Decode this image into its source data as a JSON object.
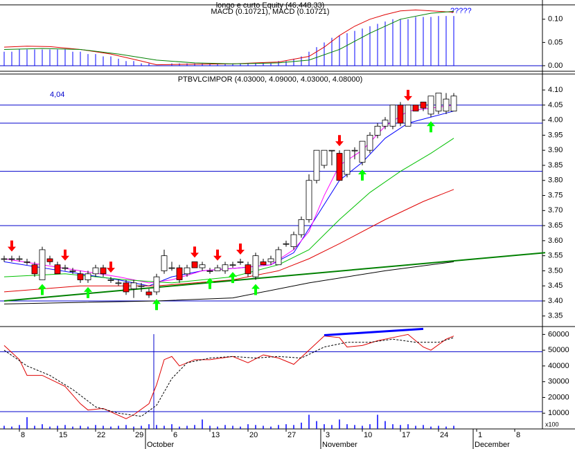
{
  "chart_data": [
    {
      "type": "macd",
      "title": "longo e curto Equity (46,448.33)",
      "subtitle": "MACD (0.10721), MACD (0.10721)",
      "annotation": "?????",
      "ylim": [
        -0.012,
        0.131
      ],
      "yticks": [
        {
          "value": 0,
          "label": "0.00"
        },
        {
          "value": 0.05,
          "label": "0.05"
        },
        {
          "value": 0.1,
          "label": "0.10"
        }
      ],
      "hlines": [
        0
      ],
      "hline_color": "#0000cc",
      "histogram": {
        "color": "#0000ff",
        "values": [
          0.03,
          0.03,
          0.035,
          0.035,
          0.035,
          0.035,
          0.035,
          0.035,
          0.035,
          0.03,
          0.03,
          0.025,
          0.025,
          0.02,
          0.02,
          0.015,
          0.01,
          0.01,
          0.005,
          0.005,
          0.0,
          0.0,
          0.005,
          0.005,
          0.005,
          0.005,
          0.005,
          0.005,
          0.005,
          0.005,
          0.005,
          0.005,
          0.005,
          0.005,
          0.005,
          0.005,
          0.01,
          0.01,
          0.015,
          0.02,
          0.03,
          0.04,
          0.05,
          0.06,
          0.065,
          0.07,
          0.075,
          0.08,
          0.085,
          0.09,
          0.095,
          0.1,
          0.1,
          0.1,
          0.105,
          0.105,
          0.105,
          0.107,
          0.107,
          0.107
        ]
      },
      "lines": [
        {
          "color": "#e00000",
          "width": 1,
          "x": [
            0,
            3,
            6,
            10,
            14,
            18,
            20,
            24,
            30,
            36,
            40,
            42,
            44,
            46,
            48,
            50,
            52,
            54,
            57,
            59
          ],
          "values": [
            0.04,
            0.042,
            0.041,
            0.035,
            0.025,
            0.01,
            0.002,
            0.003,
            0.004,
            0.008,
            0.02,
            0.04,
            0.065,
            0.085,
            0.1,
            0.11,
            0.118,
            0.12,
            0.117,
            0.115
          ]
        },
        {
          "color": "#008000",
          "width": 1,
          "x": [
            0,
            5,
            10,
            15,
            20,
            25,
            30,
            36,
            40,
            44,
            48,
            52,
            56,
            59
          ],
          "values": [
            0.035,
            0.037,
            0.035,
            0.025,
            0.012,
            0.006,
            0.004,
            0.006,
            0.012,
            0.035,
            0.07,
            0.1,
            0.113,
            0.117
          ]
        }
      ]
    },
    {
      "type": "candlestick",
      "title": "PTBVLCIMPOR (4.03000, 4.09000, 4.03000, 4.08000)",
      "annotation": "4,04",
      "ylim": [
        3.315,
        4.153
      ],
      "yticks": [
        {
          "value": 3.35,
          "label": "3.35"
        },
        {
          "value": 3.4,
          "label": "3.40"
        },
        {
          "value": 3.45,
          "label": "3.45"
        },
        {
          "value": 3.5,
          "label": "3.50"
        },
        {
          "value": 3.55,
          "label": "3.55"
        },
        {
          "value": 3.6,
          "label": "3.60"
        },
        {
          "value": 3.65,
          "label": "3.65"
        },
        {
          "value": 3.7,
          "label": "3.70"
        },
        {
          "value": 3.75,
          "label": "3.75"
        },
        {
          "value": 3.8,
          "label": "3.80"
        },
        {
          "value": 3.85,
          "label": "3.85"
        },
        {
          "value": 3.9,
          "label": "3.90"
        },
        {
          "value": 3.95,
          "label": "3.95"
        },
        {
          "value": 4,
          "label": "4.00"
        },
        {
          "value": 4.05,
          "label": "4.05"
        },
        {
          "value": 4.1,
          "label": "4.10"
        }
      ],
      "hlines": [
        3.4,
        3.65,
        3.83,
        3.99,
        4.05
      ],
      "hline_color": "#0000cc",
      "up_color": "#ffffff",
      "down_color": "#ff0000",
      "open": [
        3.54,
        3.54,
        3.54,
        3.53,
        3.52,
        3.47,
        3.54,
        3.52,
        3.51,
        3.5,
        3.49,
        3.47,
        3.49,
        3.51,
        3.47,
        3.46,
        3.46,
        3.44,
        3.45,
        3.43,
        3.43,
        3.5,
        3.51,
        3.51,
        3.49,
        3.53,
        3.51,
        3.5,
        3.5,
        3.5,
        3.52,
        3.53,
        3.52,
        3.48,
        3.53,
        3.53,
        3.52,
        3.59,
        3.58,
        3.62,
        3.67,
        3.8,
        3.85,
        3.9,
        3.89,
        3.82,
        3.9,
        3.86,
        3.9,
        3.95,
        3.98,
        3.98,
        4.05,
        3.98,
        4.05,
        4.06,
        4.02,
        4.03,
        4.03,
        4.03
      ],
      "high": [
        3.55,
        3.55,
        3.55,
        3.54,
        3.53,
        3.58,
        3.55,
        3.53,
        3.52,
        3.51,
        3.5,
        3.5,
        3.52,
        3.52,
        3.48,
        3.47,
        3.47,
        3.47,
        3.46,
        3.44,
        3.49,
        3.57,
        3.53,
        3.52,
        3.52,
        3.53,
        3.53,
        3.51,
        3.52,
        3.53,
        3.53,
        3.54,
        3.53,
        3.56,
        3.54,
        3.55,
        3.58,
        3.6,
        3.63,
        3.68,
        3.82,
        3.9,
        3.9,
        3.9,
        3.9,
        3.9,
        3.91,
        3.93,
        3.96,
        3.99,
        4.01,
        4.05,
        4.06,
        4.05,
        4.05,
        4.06,
        4.08,
        4.09,
        4.09,
        4.09
      ],
      "low": [
        3.53,
        3.53,
        3.53,
        3.52,
        3.48,
        3.47,
        3.52,
        3.49,
        3.5,
        3.49,
        3.46,
        3.46,
        3.48,
        3.48,
        3.46,
        3.45,
        3.42,
        3.41,
        3.43,
        3.41,
        3.42,
        3.49,
        3.5,
        3.46,
        3.48,
        3.51,
        3.5,
        3.49,
        3.5,
        3.49,
        3.51,
        3.52,
        3.48,
        3.47,
        3.52,
        3.52,
        3.52,
        3.58,
        3.57,
        3.61,
        3.66,
        3.79,
        3.84,
        3.85,
        3.8,
        3.81,
        3.87,
        3.85,
        3.89,
        3.94,
        3.97,
        3.97,
        3.98,
        3.98,
        4.03,
        4.03,
        4.01,
        4.02,
        4.02,
        4.03
      ],
      "close": [
        3.54,
        3.54,
        3.54,
        3.53,
        3.49,
        3.57,
        3.53,
        3.49,
        3.51,
        3.5,
        3.47,
        3.49,
        3.51,
        3.49,
        3.47,
        3.46,
        3.43,
        3.46,
        3.45,
        3.42,
        3.48,
        3.55,
        3.51,
        3.47,
        3.51,
        3.51,
        3.52,
        3.5,
        3.51,
        3.52,
        3.52,
        3.53,
        3.49,
        3.55,
        3.52,
        3.54,
        3.57,
        3.59,
        3.62,
        3.67,
        3.8,
        3.9,
        3.9,
        3.9,
        3.8,
        3.9,
        3.9,
        3.93,
        3.95,
        3.98,
        4.0,
        4.05,
        3.99,
        4.05,
        4.03,
        4.04,
        4.08,
        4.09,
        4.07,
        4.08
      ],
      "lines": [
        {
          "color": "#0000ff",
          "width": 1,
          "x": [
            0,
            5,
            10,
            15,
            19,
            22,
            26,
            31,
            35,
            38,
            41,
            44,
            47,
            50,
            53,
            56,
            59
          ],
          "values": [
            3.53,
            3.51,
            3.49,
            3.47,
            3.45,
            3.48,
            3.5,
            3.51,
            3.52,
            3.56,
            3.68,
            3.8,
            3.86,
            3.94,
            3.99,
            4.01,
            4.03
          ]
        },
        {
          "color": "#ff00ff",
          "width": 1,
          "x": [
            0,
            5,
            10,
            15,
            19,
            22,
            26,
            31,
            35,
            38,
            40,
            42,
            44,
            47,
            50,
            53,
            56,
            59
          ],
          "values": [
            3.54,
            3.52,
            3.5,
            3.48,
            3.46,
            3.47,
            3.5,
            3.51,
            3.52,
            3.57,
            3.63,
            3.75,
            3.85,
            3.9,
            3.98,
            4.03,
            4.04,
            4.05
          ]
        },
        {
          "color": "#00c000",
          "width": 1,
          "x": [
            0,
            8,
            16,
            22,
            30,
            36,
            40,
            44,
            48,
            52,
            56,
            59
          ],
          "values": [
            3.48,
            3.49,
            3.47,
            3.46,
            3.48,
            3.52,
            3.57,
            3.67,
            3.76,
            3.83,
            3.89,
            3.94
          ]
        },
        {
          "color": "#e00000",
          "width": 1,
          "x": [
            0,
            10,
            20,
            30,
            36,
            40,
            44,
            50,
            55,
            59
          ],
          "values": [
            3.43,
            3.45,
            3.45,
            3.47,
            3.5,
            3.54,
            3.59,
            3.67,
            3.73,
            3.77
          ]
        },
        {
          "color": "#000000",
          "width": 1,
          "x": [
            0,
            20,
            30,
            40,
            50,
            59
          ],
          "values": [
            3.39,
            3.4,
            3.41,
            3.46,
            3.5,
            3.53
          ]
        },
        {
          "color": "#008000",
          "width": 2,
          "x": [
            0,
            71
          ],
          "values": [
            3.4,
            3.56
          ]
        }
      ],
      "sell_arrows": [
        1,
        8,
        14,
        25,
        28,
        31,
        44,
        53
      ],
      "sell_color": "#ff0000",
      "buy_arrows": [
        5,
        11,
        20,
        27,
        30,
        33,
        47,
        56
      ],
      "buy_color": "#00ff00"
    },
    {
      "type": "oscillator",
      "ylim": [
        0,
        65000
      ],
      "yticks": [
        10000,
        20000,
        30000,
        40000,
        50000,
        60000
      ],
      "unit_label": "x100",
      "hlines": [
        11000,
        49000
      ],
      "hline_color": "#0000cc",
      "volume": {
        "color": "#0000ff",
        "values": [
          2000,
          1500,
          2500,
          7500,
          2000,
          3000,
          1500,
          2000,
          2500,
          1500,
          2000,
          1500,
          2500,
          2000,
          1500,
          2000,
          2500,
          1500,
          2000,
          3000,
          2500,
          2000,
          3000,
          1500,
          2000,
          2500,
          6000,
          2000,
          1500,
          2500,
          2000,
          1500,
          3000,
          2500,
          2000,
          1500,
          2500,
          3000,
          2500,
          4000,
          9000,
          5000,
          3000,
          2500,
          6000,
          3000,
          2500,
          2000,
          3000,
          9000,
          5000,
          3000,
          2500,
          3000,
          2000,
          2500,
          1500,
          2000,
          1500,
          2000
        ]
      },
      "lines": [
        {
          "color": "#e00000",
          "width": 1,
          "dash": false,
          "x": [
            0,
            2,
            3,
            5,
            8,
            10,
            11,
            13,
            16,
            17,
            19,
            20,
            21,
            22,
            23,
            25,
            27,
            30,
            32,
            34,
            36,
            38,
            40,
            42,
            44,
            45,
            47,
            49,
            51,
            53,
            55,
            56,
            58,
            59
          ],
          "values": [
            53000,
            44000,
            34000,
            34000,
            27000,
            16000,
            12000,
            13000,
            6500,
            9000,
            16000,
            28000,
            44000,
            46000,
            40000,
            44000,
            44000,
            46000,
            42000,
            47000,
            45000,
            41000,
            50000,
            59000,
            58000,
            52000,
            53000,
            56000,
            58000,
            60000,
            52000,
            50000,
            57000,
            59000
          ]
        },
        {
          "color": "#000000",
          "width": 1,
          "dash": true,
          "x": [
            0,
            3,
            6,
            9,
            12,
            15,
            18,
            20,
            22,
            24,
            27,
            30,
            33,
            36,
            39,
            42,
            45,
            48,
            51,
            54,
            57,
            59
          ],
          "values": [
            50000,
            40000,
            34000,
            25000,
            14000,
            10000,
            8000,
            15000,
            32000,
            42000,
            45000,
            46000,
            45000,
            46000,
            45000,
            52000,
            55000,
            55000,
            57000,
            55000,
            55000,
            58000
          ]
        },
        {
          "color": "#0000ff",
          "width": 3,
          "dash": false,
          "x": [
            42,
            55
          ],
          "values": [
            59500,
            63500
          ]
        }
      ],
      "categories": [
        null,
        null,
        "8",
        null,
        null,
        null,
        null,
        "15",
        null,
        null,
        null,
        null,
        "22",
        null,
        null,
        null,
        null,
        "29",
        null,
        null,
        null,
        null,
        "6",
        null,
        null,
        null,
        null,
        "13",
        null,
        null,
        null,
        null,
        "20",
        null,
        null,
        null,
        null,
        "27",
        null,
        null,
        null,
        null,
        "3",
        null,
        null,
        null,
        null,
        "10",
        null,
        null,
        null,
        null,
        "17",
        null,
        null,
        null,
        null,
        "24",
        null,
        null,
        null,
        null,
        "1",
        null,
        null,
        null,
        null,
        "8",
        null,
        null,
        null,
        null
      ],
      "months": [
        {
          "label": "October",
          "index": 19
        },
        {
          "label": "November",
          "index": 42
        },
        {
          "label": "December",
          "index": 62
        }
      ]
    }
  ]
}
